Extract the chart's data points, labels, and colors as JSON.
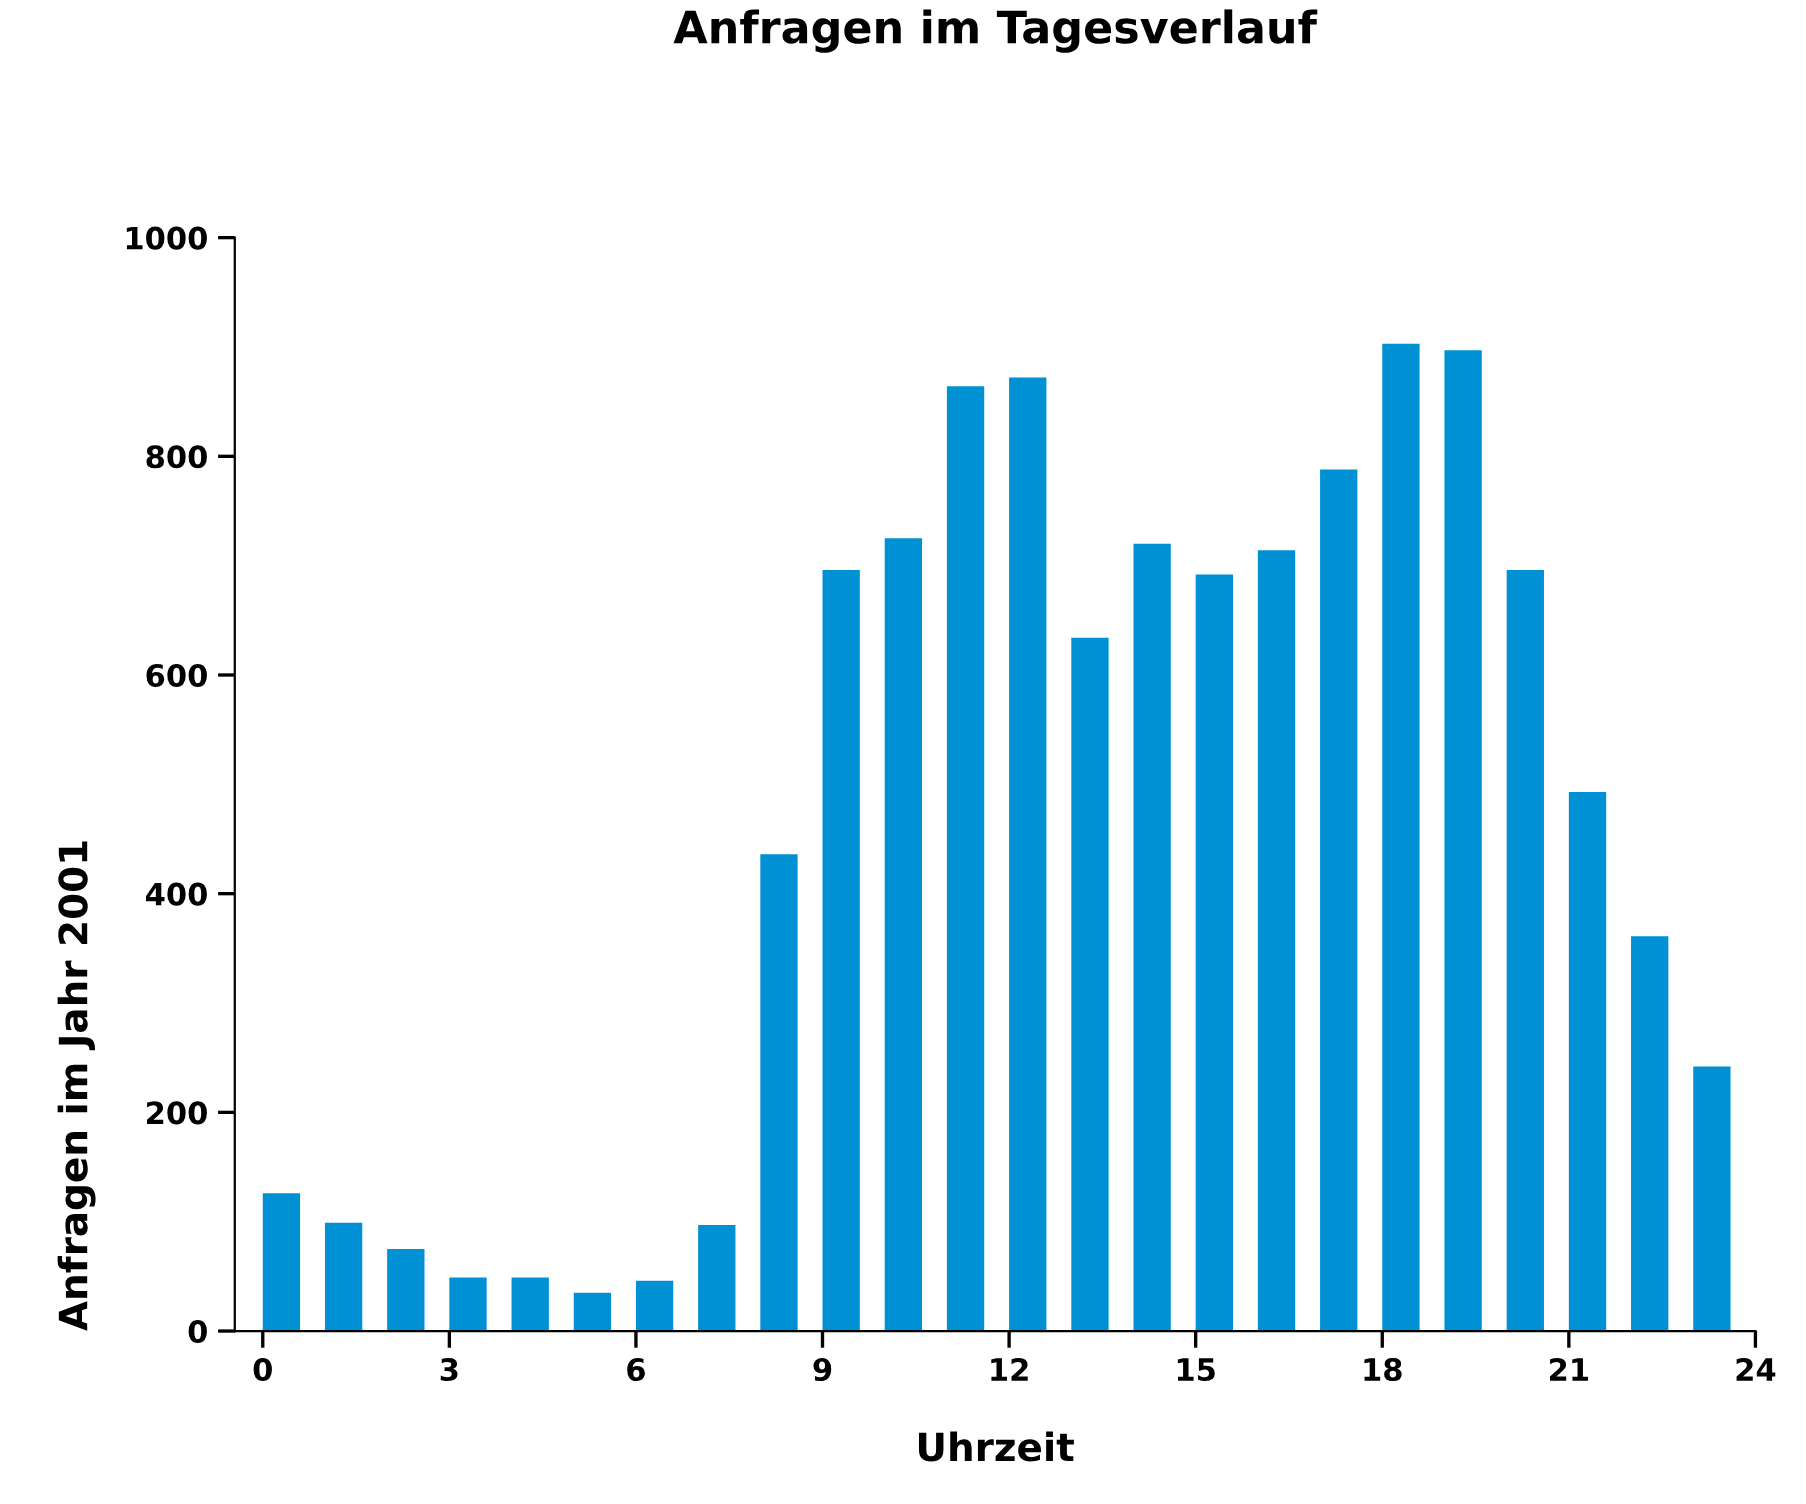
{
  "chart_data": {
    "type": "bar",
    "title": "Anfragen im Tagesverlauf",
    "xlabel": "Uhrzeit",
    "ylabel": "Anfragen im Jahr 2001",
    "x": [
      0.3,
      1.3,
      2.3,
      3.3,
      4.3,
      5.3,
      6.3,
      7.3,
      8.3,
      9.3,
      10.3,
      11.3,
      12.3,
      13.3,
      14.3,
      15.3,
      16.3,
      17.3,
      18.3,
      19.3,
      20.3,
      21.3,
      22.3,
      23.3
    ],
    "values": [
      126,
      99,
      75,
      49,
      49,
      35,
      46,
      97,
      436,
      696,
      725,
      864,
      872,
      634,
      720,
      692,
      714,
      788,
      903,
      897,
      696,
      493,
      361,
      242
    ],
    "color": "#0090d4",
    "xlim": [
      -0.45,
      24
    ],
    "xticks": [
      0,
      3,
      6,
      9,
      12,
      15,
      18,
      21,
      24
    ],
    "ylim": [
      0,
      1000
    ],
    "yticks": [
      0,
      200,
      400,
      600,
      800,
      1000
    ],
    "grid": false,
    "legend": false
  }
}
